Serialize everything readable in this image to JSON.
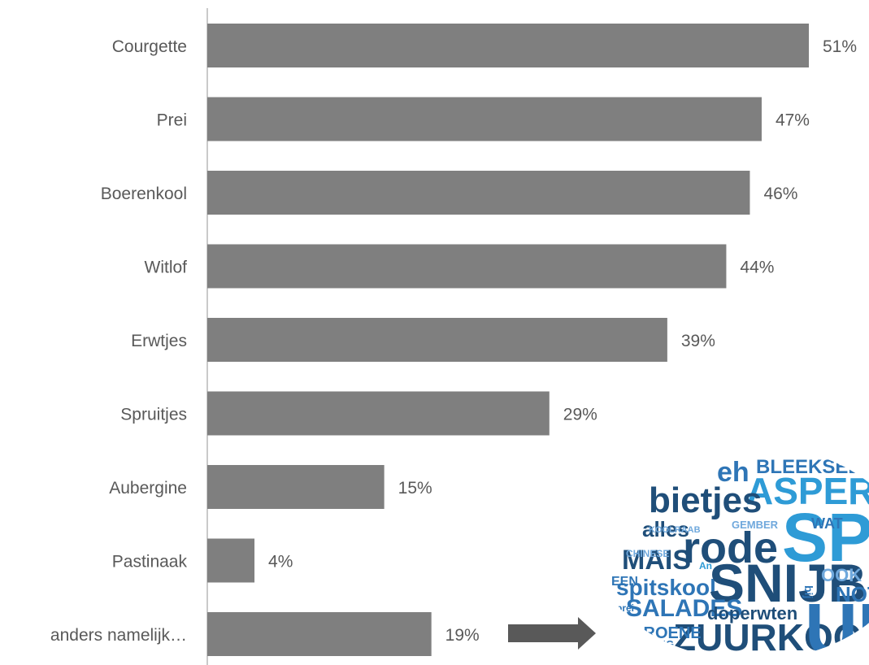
{
  "chart_data": {
    "type": "bar",
    "orientation": "horizontal",
    "categories": [
      "Courgette",
      "Prei",
      "Boerenkool",
      "Witlof",
      "Erwtjes",
      "Spruitjes",
      "Aubergine",
      "Pastinaak",
      "anders namelijk…"
    ],
    "values": [
      51,
      47,
      46,
      44,
      39,
      29,
      15,
      4,
      19
    ],
    "value_labels": [
      "51%",
      "47%",
      "46%",
      "44%",
      "39%",
      "29%",
      "15%",
      "4%",
      "19%"
    ],
    "unit": "%",
    "title": "",
    "xlabel": "",
    "ylabel": "",
    "grid": false,
    "legend": "none",
    "bar_color": "#7f7f7f",
    "label_color": "#595959"
  },
  "word_cloud": {
    "words": [
      {
        "text": "BLEEKSELDER",
        "color": "#2e75b6"
      },
      {
        "text": "ASPERG",
        "color": "#2e9bd6"
      },
      {
        "text": "eh",
        "color": "#2e75b6"
      },
      {
        "text": "bietjes",
        "color": "#1f4e79"
      },
      {
        "text": "alles",
        "color": "#1f4e79"
      },
      {
        "text": "MAIS",
        "color": "#1f4e79"
      },
      {
        "text": "rode",
        "color": "#1f4e79"
      },
      {
        "text": "SPI",
        "color": "#2e9bd6"
      },
      {
        "text": "spitskool",
        "color": "#2e75b6"
      },
      {
        "text": "SNIJBON",
        "color": "#1f4e79"
      },
      {
        "text": "SALADES",
        "color": "#2e75b6"
      },
      {
        "text": "doperwten",
        "color": "#1f4e79"
      },
      {
        "text": "ZUURKOOL",
        "color": "#1f4e79"
      },
      {
        "text": "GROENE",
        "color": "#2e75b6"
      },
      {
        "text": "GEMBER",
        "color": "#6fa8dc"
      },
      {
        "text": "KOOLRAAB",
        "color": "#6fa8dc"
      },
      {
        "text": "WAT",
        "color": "#2e75b6"
      },
      {
        "text": "VULLING",
        "color": "#2e75b6"
      },
      {
        "text": "OOK",
        "color": "#6fa8dc"
      },
      {
        "text": "prei",
        "color": "#2e75b6"
      },
      {
        "text": "CHINESE",
        "color": "#6fa8dc"
      },
      {
        "text": "NOTEN",
        "color": "#2e75b6"
      },
      {
        "text": "EEN",
        "color": "#2e75b6"
      },
      {
        "text": "bij",
        "color": "#2e75b6"
      },
      {
        "text": "UI",
        "color": "#2e75b6"
      },
      {
        "text": "An",
        "color": "#2e9bd6"
      }
    ]
  }
}
